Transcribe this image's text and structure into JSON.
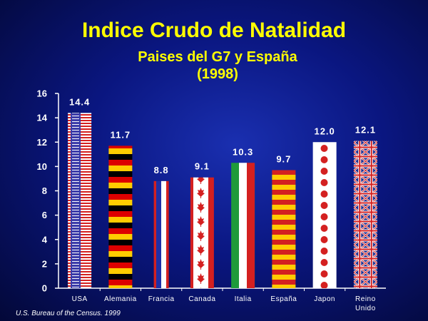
{
  "source": "U.S. Bureau of the Census. 1999",
  "colors": {
    "background": "#0a1680",
    "title": "#ffff00",
    "axis": "#ffffff"
  },
  "chart_data": {
    "type": "bar",
    "title": "Indice Crudo de Natalidad",
    "subtitle_lines": [
      "Paises del G7 y España",
      "(1998)"
    ],
    "categories": [
      "USA",
      "Alemania",
      "Francia",
      "Canada",
      "Italia",
      "España",
      "Japon",
      "Reino Unido"
    ],
    "category_lines": [
      [
        "USA"
      ],
      [
        "Alemania"
      ],
      [
        "Francia"
      ],
      [
        "Canada"
      ],
      [
        "Italia"
      ],
      [
        "España"
      ],
      [
        "Japon"
      ],
      [
        "Reino",
        "Unido"
      ]
    ],
    "values": [
      14.4,
      11.7,
      8.8,
      9.1,
      10.3,
      9.7,
      12.0,
      12.1
    ],
    "value_labels": [
      "14.4",
      "11.7",
      "8.8",
      "9.1",
      "10.3",
      "9.7",
      "12.0",
      "12.1"
    ],
    "bar_fills": [
      "flag-usa",
      "flag-germany",
      "flag-france",
      "flag-canada",
      "flag-italy",
      "flag-spain",
      "flag-japan",
      "flag-uk"
    ],
    "yticks": [
      0,
      2,
      4,
      6,
      8,
      10,
      12,
      14,
      16
    ],
    "ylim": [
      0,
      16
    ],
    "xlabel": "",
    "ylabel": "",
    "grid": false,
    "legend": "none"
  }
}
